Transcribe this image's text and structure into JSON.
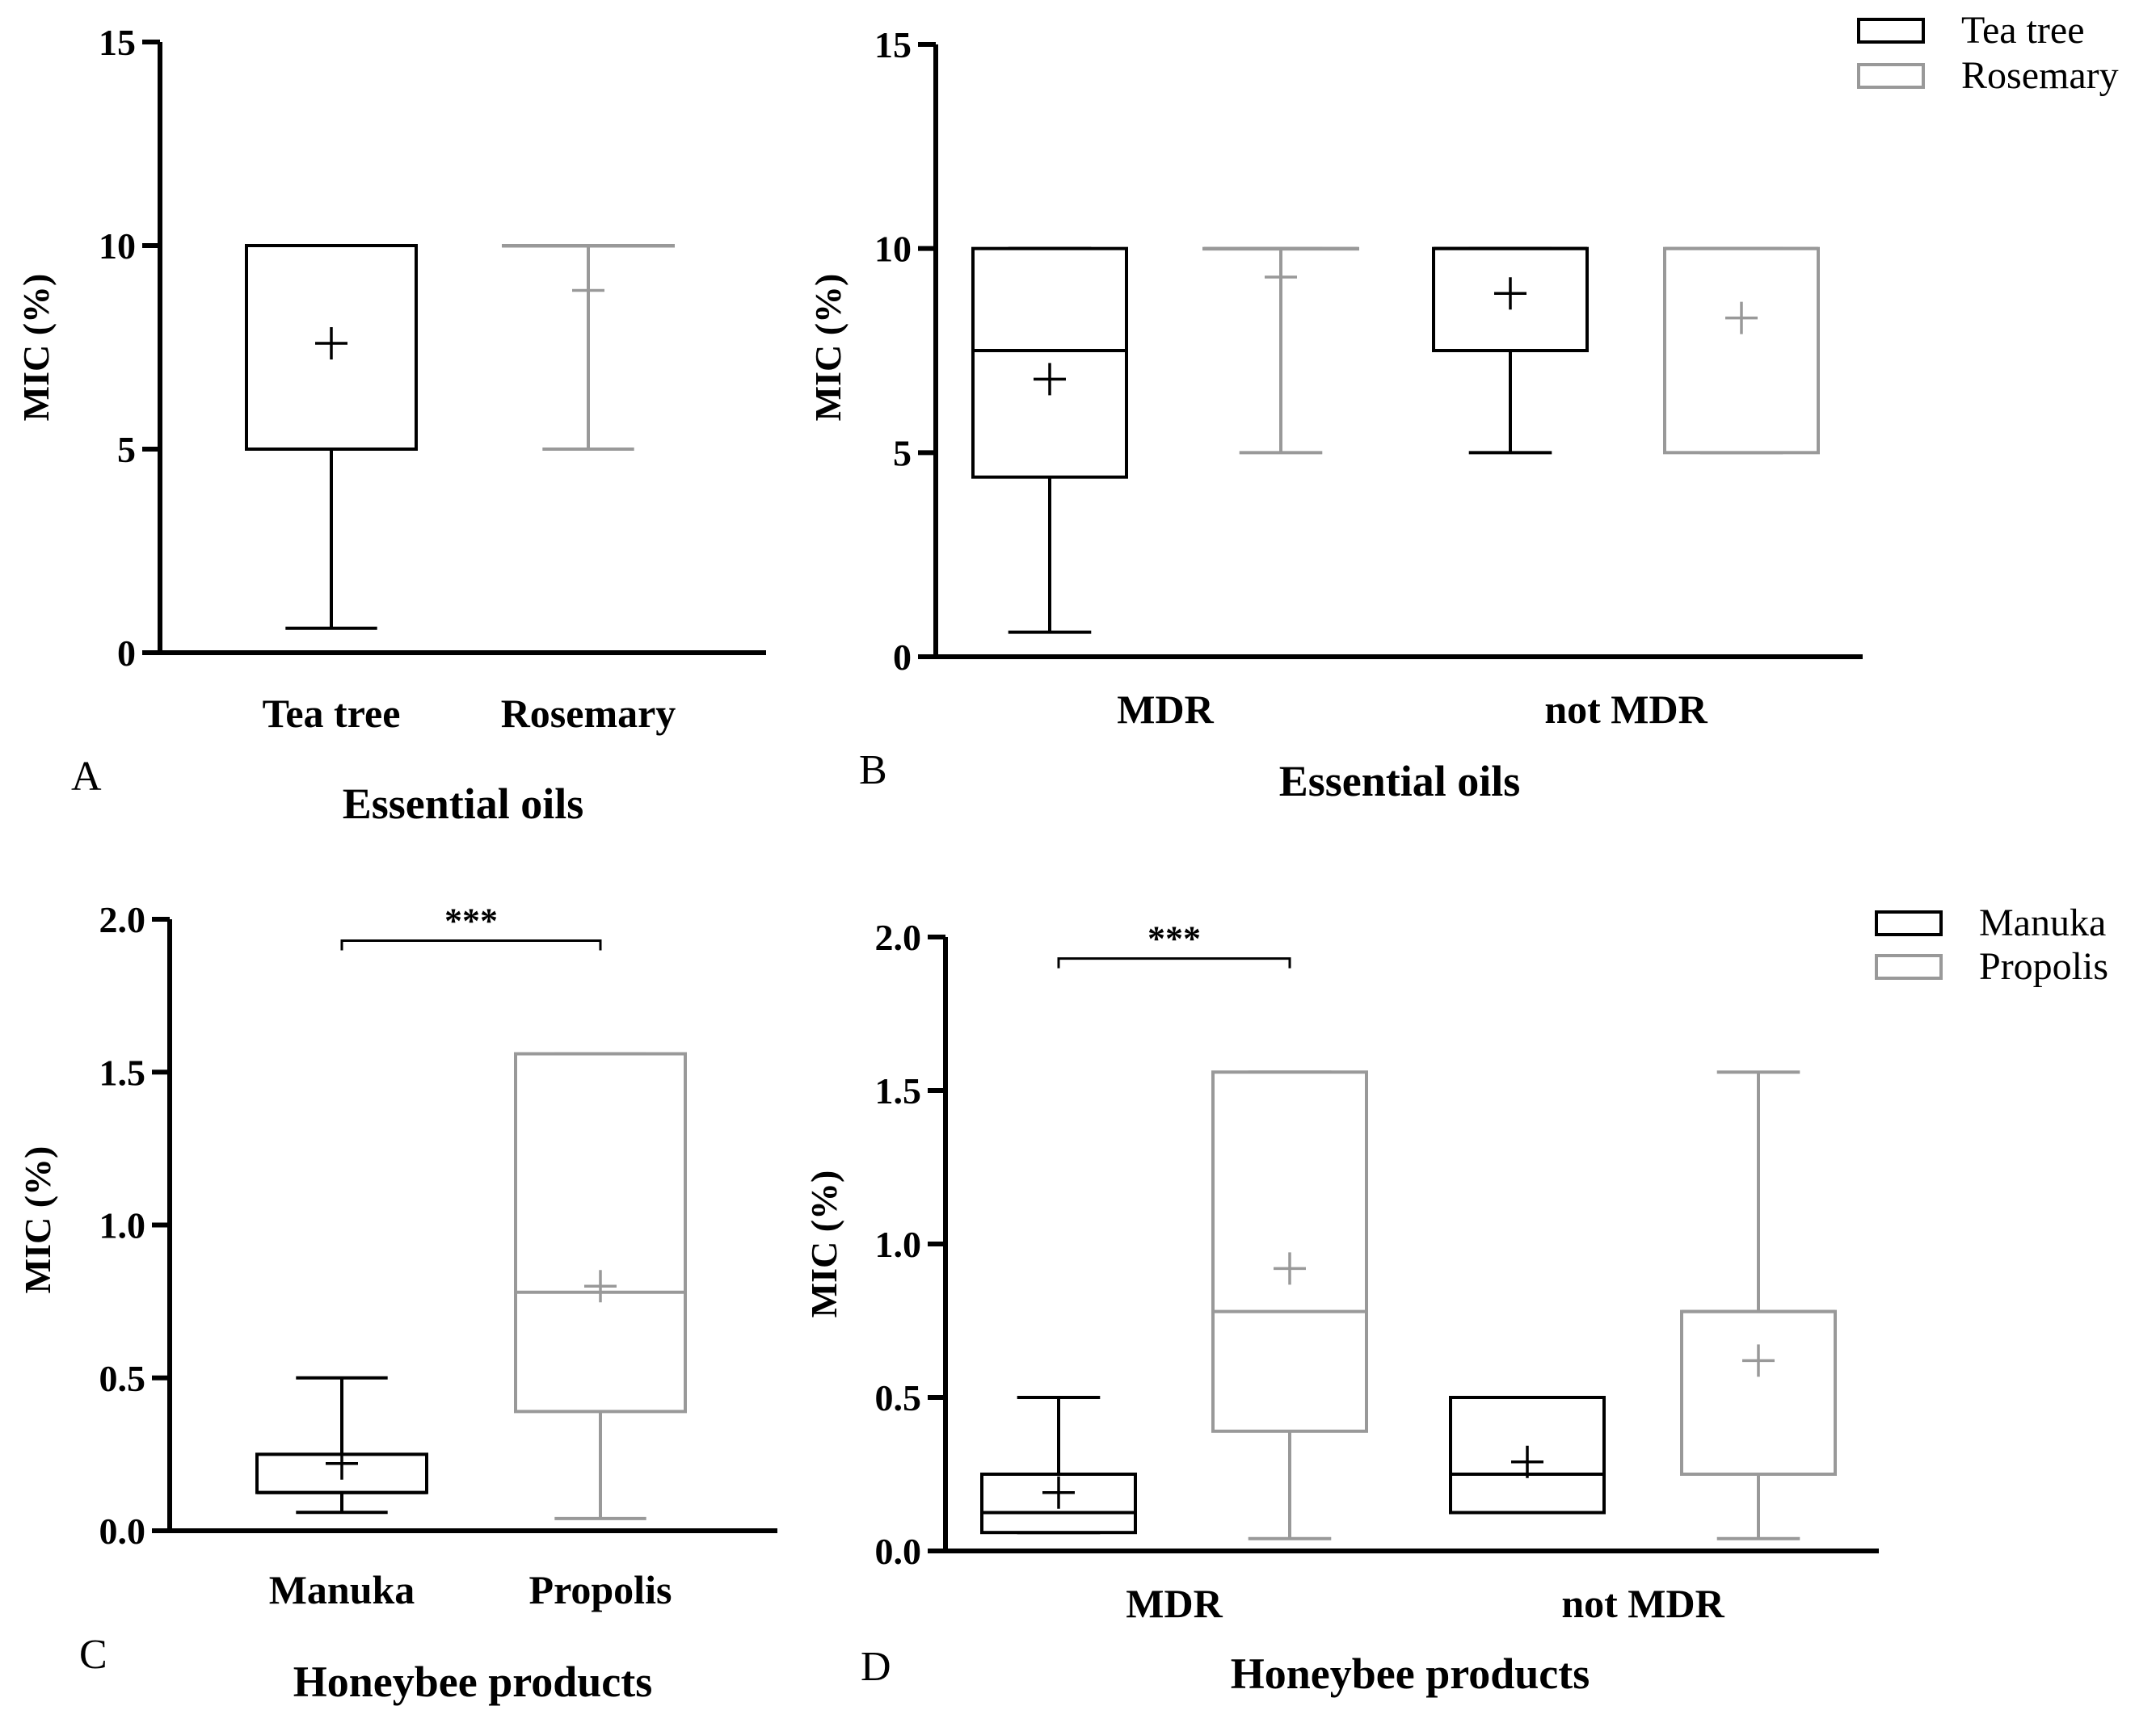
{
  "figure": {
    "colors": {
      "tea_tree": "#000000",
      "rosemary": "#999999",
      "manuka": "#000000",
      "propolis": "#999999"
    }
  },
  "chart_data": [
    {
      "panel": "A",
      "type": "box",
      "xlabel": "Essential oils",
      "ylabel": "MIC (%)",
      "ylim": [
        0,
        15
      ],
      "yticks": [
        "0",
        "5",
        "10",
        "15"
      ],
      "categories": [
        "Tea tree",
        "Rosemary"
      ],
      "series": [
        {
          "category": "Tea tree",
          "color": "#000000",
          "whisker_low": 0.6,
          "q1": 5.0,
          "median": 10.0,
          "q3": 10.0,
          "whisker_high": 10.0,
          "mean": 7.6
        },
        {
          "category": "Rosemary",
          "color": "#999999",
          "whisker_low": 5.0,
          "q1": 10.0,
          "median": 10.0,
          "q3": 10.0,
          "whisker_high": 10.0,
          "mean": 8.9
        }
      ]
    },
    {
      "panel": "B",
      "type": "box",
      "xlabel": "Essential oils",
      "ylabel": "MIC (%)",
      "ylim": [
        0,
        15
      ],
      "yticks": [
        "0",
        "5",
        "10",
        "15"
      ],
      "categories": [
        "MDR",
        "not MDR"
      ],
      "legend": [
        {
          "label": "Tea tree",
          "color": "#000000"
        },
        {
          "label": "Rosemary",
          "color": "#999999"
        }
      ],
      "series": [
        {
          "name": "Tea tree",
          "color": "#000000",
          "boxes": [
            {
              "category": "MDR",
              "whisker_low": 0.6,
              "q1": 4.4,
              "median": 7.5,
              "q3": 10.0,
              "whisker_high": 10.0,
              "mean": 6.8
            },
            {
              "category": "not MDR",
              "whisker_low": 5.0,
              "q1": 7.5,
              "median": 10.0,
              "q3": 10.0,
              "whisker_high": 10.0,
              "mean": 8.9
            }
          ]
        },
        {
          "name": "Rosemary",
          "color": "#999999",
          "boxes": [
            {
              "category": "MDR",
              "whisker_low": 5.0,
              "q1": 10.0,
              "median": 10.0,
              "q3": 10.0,
              "whisker_high": 10.0,
              "mean": 9.3
            },
            {
              "category": "not MDR",
              "whisker_low": 5.0,
              "q1": 5.0,
              "median": 10.0,
              "q3": 10.0,
              "whisker_high": 10.0,
              "mean": 8.3
            }
          ]
        }
      ]
    },
    {
      "panel": "C",
      "type": "box",
      "xlabel": "Honeybee products",
      "ylabel": "MIC (%)",
      "ylim": [
        0,
        2.0
      ],
      "yticks": [
        "0.0",
        "0.5",
        "1.0",
        "1.5",
        "2.0"
      ],
      "categories": [
        "Manuka",
        "Propolis"
      ],
      "significance": {
        "text": "***",
        "between": [
          "Manuka",
          "Propolis"
        ],
        "y": 1.93
      },
      "series": [
        {
          "category": "Manuka",
          "color": "#000000",
          "whisker_low": 0.06,
          "q1": 0.125,
          "median": 0.125,
          "q3": 0.25,
          "whisker_high": 0.5,
          "mean": 0.22
        },
        {
          "category": "Propolis",
          "color": "#999999",
          "whisker_low": 0.04,
          "q1": 0.39,
          "median": 0.78,
          "q3": 1.56,
          "whisker_high": 1.56,
          "mean": 0.8
        }
      ]
    },
    {
      "panel": "D",
      "type": "box",
      "xlabel": "Honeybee products",
      "ylabel": "MIC (%)",
      "ylim": [
        0,
        2.0
      ],
      "yticks": [
        "0.0",
        "0.5",
        "1.0",
        "1.5",
        "2.0"
      ],
      "categories": [
        "MDR",
        "not MDR"
      ],
      "legend": [
        {
          "label": "Manuka",
          "color": "#000000"
        },
        {
          "label": "Propolis",
          "color": "#999999"
        }
      ],
      "significance": {
        "text": "***",
        "category": "MDR",
        "y": 1.93
      },
      "series": [
        {
          "name": "Manuka",
          "color": "#000000",
          "boxes": [
            {
              "category": "MDR",
              "whisker_low": 0.06,
              "q1": 0.06,
              "median": 0.125,
              "q3": 0.25,
              "whisker_high": 0.5,
              "mean": 0.19
            },
            {
              "category": "not MDR",
              "whisker_low": 0.125,
              "q1": 0.125,
              "median": 0.25,
              "q3": 0.5,
              "whisker_high": 0.5,
              "mean": 0.29
            }
          ]
        },
        {
          "name": "Propolis",
          "color": "#999999",
          "boxes": [
            {
              "category": "MDR",
              "whisker_low": 0.04,
              "q1": 0.39,
              "median": 0.78,
              "q3": 1.56,
              "whisker_high": 1.56,
              "mean": 0.92
            },
            {
              "category": "not MDR",
              "whisker_low": 0.04,
              "q1": 0.25,
              "median": 0.78,
              "q3": 0.78,
              "whisker_high": 1.56,
              "mean": 0.62
            }
          ]
        }
      ]
    }
  ]
}
